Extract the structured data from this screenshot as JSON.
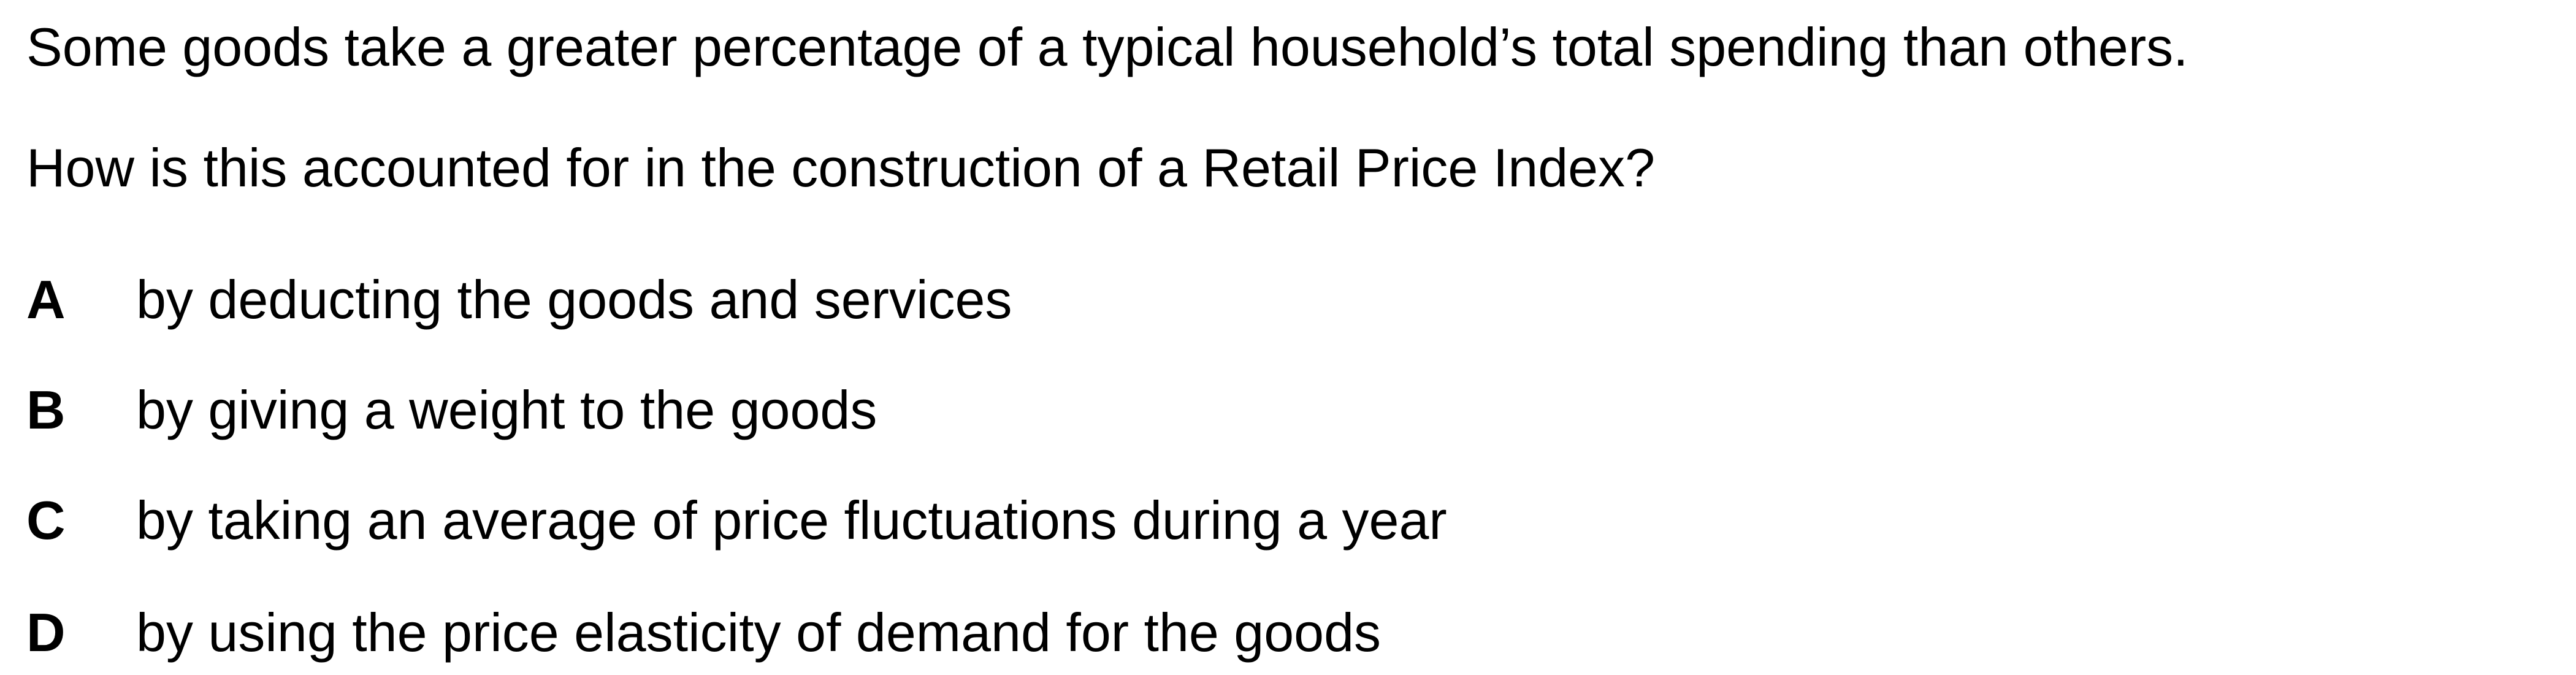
{
  "question": {
    "intro": "Some goods take a greater percentage of a typical household’s total spending than others.",
    "prompt": "How is this accounted for in the construction of a Retail Price Index?"
  },
  "options": [
    {
      "letter": "A",
      "text": "by deducting the goods and services"
    },
    {
      "letter": "B",
      "text": "by giving a weight to the goods"
    },
    {
      "letter": "C",
      "text": "by taking an average of price fluctuations during a year"
    },
    {
      "letter": "D",
      "text": "by using the price elasticity of demand for the goods"
    }
  ]
}
